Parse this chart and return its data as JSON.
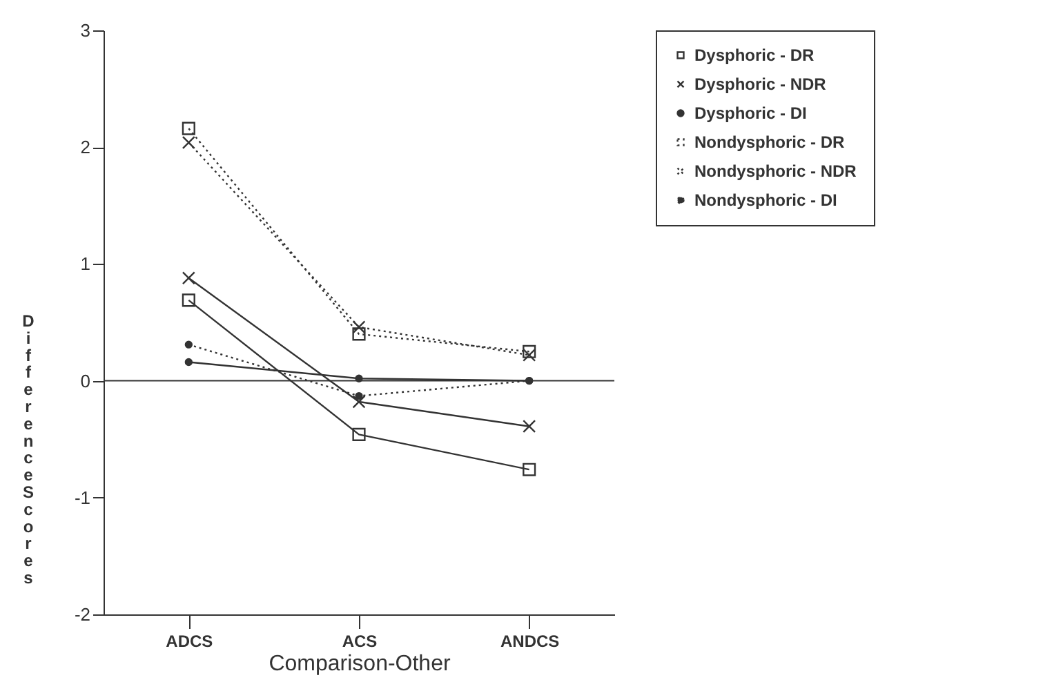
{
  "chart_data": {
    "type": "line",
    "xlabel": "Comparison-Other",
    "ylabel": "Difference Scores",
    "categories": [
      "ADCS",
      "ACS",
      "ANDCS"
    ],
    "ylim": [
      -2,
      3
    ],
    "yticks": [
      -2,
      -1,
      0,
      1,
      2,
      3
    ],
    "grid": false,
    "legend": "right",
    "ref_lines": [
      {
        "axis": "y",
        "value": 0,
        "color": "#333333"
      }
    ],
    "series": [
      {
        "name": "Dysphoric - DR",
        "color": "#333333",
        "marker": "square",
        "line_style": "solid",
        "values": [
          0.69,
          -0.46,
          -0.76
        ]
      },
      {
        "name": "Dysphoric - NDR",
        "color": "#333333",
        "marker": "cross",
        "line_style": "solid",
        "values": [
          0.88,
          -0.18,
          -0.39
        ]
      },
      {
        "name": "Dysphoric - DI",
        "color": "#333333",
        "marker": "circle",
        "line_style": "solid",
        "values": [
          0.16,
          0.02,
          0.0
        ]
      },
      {
        "name": "Nondysphoric - DR",
        "color": "#333333",
        "marker": "square",
        "line_style": "dotted",
        "values": [
          2.16,
          0.4,
          0.25
        ]
      },
      {
        "name": "Nondysphoric - NDR",
        "color": "#333333",
        "marker": "cross",
        "line_style": "dotted",
        "values": [
          2.04,
          0.46,
          0.22
        ]
      },
      {
        "name": "Nondysphoric - DI",
        "color": "#333333",
        "marker": "circle",
        "line_style": "dotted",
        "values": [
          0.31,
          -0.13,
          0.0
        ]
      }
    ]
  }
}
